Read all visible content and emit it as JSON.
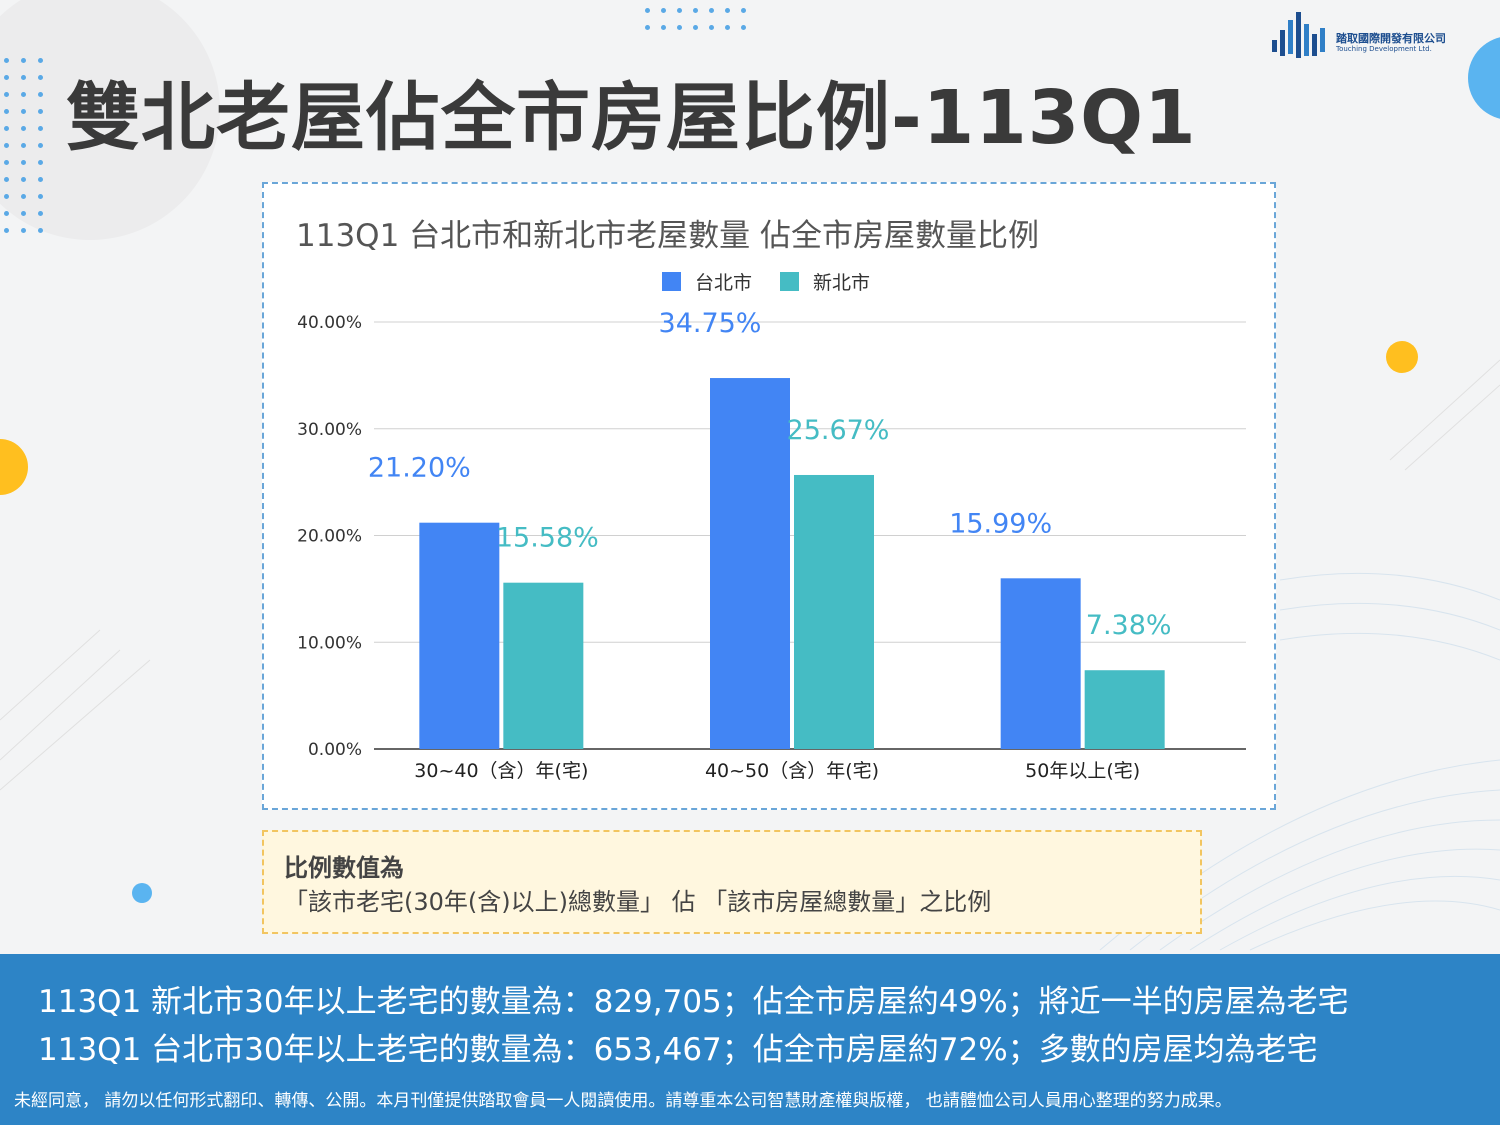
{
  "page": {
    "title": "雙北老屋佔全市房屋比例-113Q1",
    "logo": {
      "name_cn": "踏取國際開發有限公司",
      "name_en": "Touching Development Ltd."
    },
    "note": {
      "heading": "比例數值為",
      "body": "「該市老宅(30年(含)以上)總數量」 佔 「該市房屋總數量」之比例"
    },
    "summary": {
      "line1": "113Q1 新北市30年以上老宅的數量為：829,705；佔全市房屋約49%；將近一半的房屋為老宅",
      "line2": "113Q1 台北市30年以上老宅的數量為：653,467；佔全市房屋約72%；多數的房屋均為老宅"
    },
    "disclaimer": "未經同意， 請勿以任何形式翻印、轉傳、公開。本月刊僅提供踏取會員一人閱讀使用。請尊重本公司智慧財產權與版權， 也請體恤公司人員用心整理的努力成果。"
  },
  "chart_data": {
    "type": "bar",
    "title": "113Q1 台北市和新北市老屋數量 佔全市房屋數量比例",
    "categories": [
      "30~40（含）年(宅)",
      "40~50（含）年(宅)",
      "50年以上(宅)"
    ],
    "series": [
      {
        "name": "台北市",
        "color": "#4285f4",
        "values": [
          21.2,
          34.75,
          15.99
        ],
        "labels": [
          "21.20%",
          "34.75%",
          "15.99%"
        ]
      },
      {
        "name": "新北市",
        "color": "#45bcc4",
        "values": [
          15.58,
          25.67,
          7.38
        ],
        "labels": [
          "15.58%",
          "25.67%",
          "7.38%"
        ]
      }
    ],
    "ylim": [
      0,
      40
    ],
    "yticks": [
      0,
      10,
      20,
      30,
      40
    ],
    "ytick_labels": [
      "0.00%",
      "10.00%",
      "20.00%",
      "30.00%",
      "40.00%"
    ],
    "grid": true,
    "legend_position": "top-center"
  }
}
